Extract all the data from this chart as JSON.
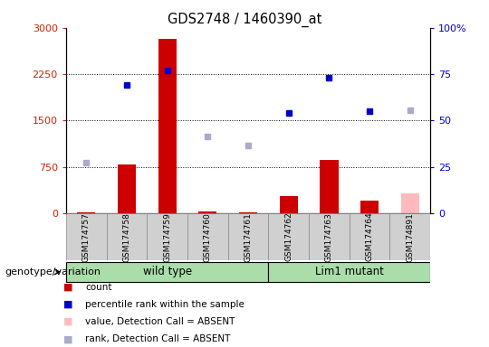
{
  "title": "GDS2748 / 1460390_at",
  "samples": [
    "GSM174757",
    "GSM174758",
    "GSM174759",
    "GSM174760",
    "GSM174761",
    "GSM174762",
    "GSM174763",
    "GSM174764",
    "GSM174891"
  ],
  "bar_values": [
    10,
    790,
    2820,
    30,
    20,
    280,
    870,
    200,
    320
  ],
  "bar_absent": [
    false,
    false,
    false,
    false,
    false,
    false,
    false,
    false,
    true
  ],
  "rank_values": [
    820,
    2080,
    2310,
    1250,
    1100,
    1630,
    2200,
    1650,
    1670
  ],
  "rank_absent": [
    true,
    false,
    false,
    true,
    true,
    false,
    false,
    false,
    true
  ],
  "groups": [
    {
      "label": "wild type",
      "start": 0,
      "end": 4
    },
    {
      "label": "Lim1 mutant",
      "start": 5,
      "end": 8
    }
  ],
  "group_label": "genotype/variation",
  "ylim_left": [
    0,
    3000
  ],
  "ylim_right": [
    0,
    100
  ],
  "yticks_left": [
    0,
    750,
    1500,
    2250,
    3000
  ],
  "ytick_labels_left": [
    "0",
    "750",
    "1500",
    "2250",
    "3000"
  ],
  "yticks_right": [
    0,
    25,
    50,
    75,
    100
  ],
  "ytick_labels_right": [
    "0",
    "25",
    "50",
    "75",
    "100%"
  ],
  "bar_color_present": "#cc0000",
  "bar_color_absent": "#ffbbbb",
  "rank_color_present": "#0000cc",
  "rank_color_absent": "#aaaacc",
  "bg_color": "#ffffff",
  "gray_box_color": "#d0d0d0",
  "green_box_color": "#aaddaa",
  "axis_color_left": "#cc2200",
  "axis_color_right": "#0000cc",
  "legend_items": [
    {
      "label": "count",
      "color": "#cc0000"
    },
    {
      "label": "percentile rank within the sample",
      "color": "#0000cc"
    },
    {
      "label": "value, Detection Call = ABSENT",
      "color": "#ffbbbb"
    },
    {
      "label": "rank, Detection Call = ABSENT",
      "color": "#aaaacc"
    }
  ],
  "grid_yticks": [
    750,
    1500,
    2250
  ]
}
